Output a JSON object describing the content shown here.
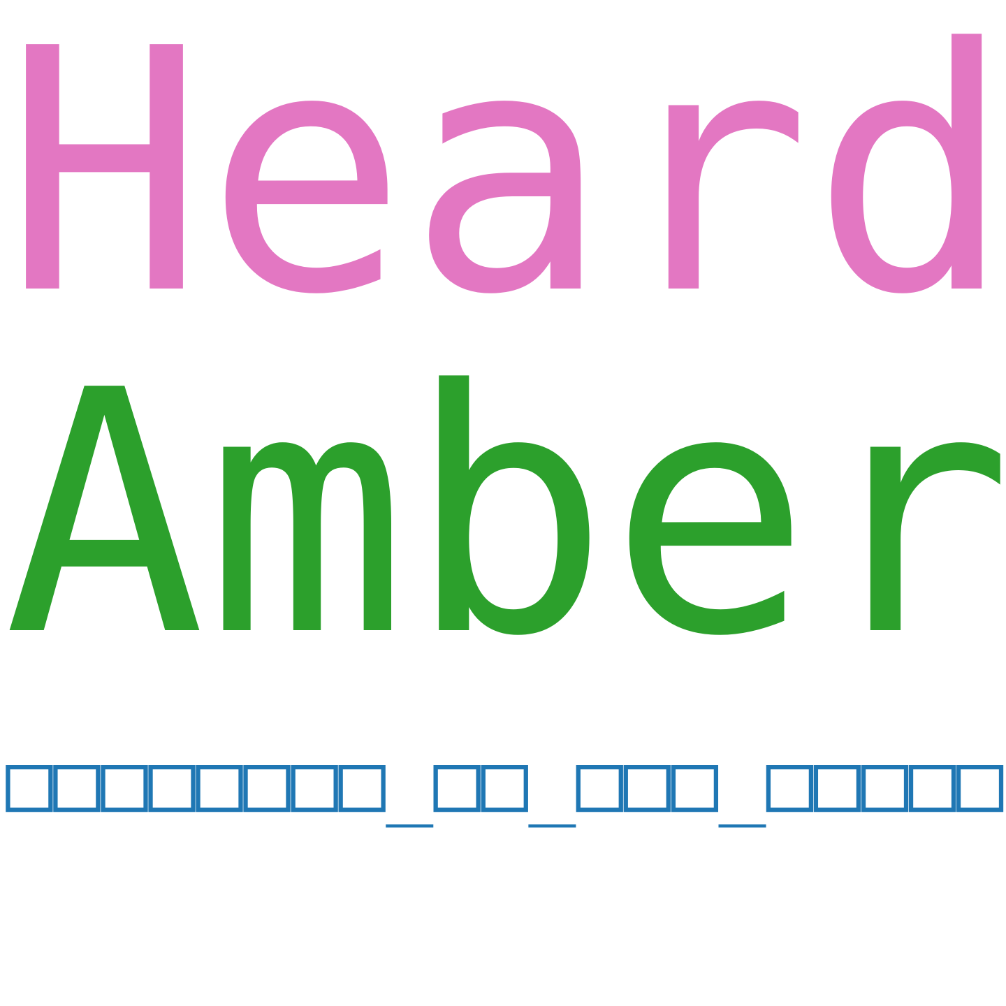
{
  "words": [
    {
      "text": "Heard",
      "color": "#e377c2"
    },
    {
      "text": "Amber",
      "color": "#2ca02c"
    },
    {
      "text": "□□□□□□□□_□□_□□□_□□□□□",
      "color": "#1f77b4"
    }
  ]
}
